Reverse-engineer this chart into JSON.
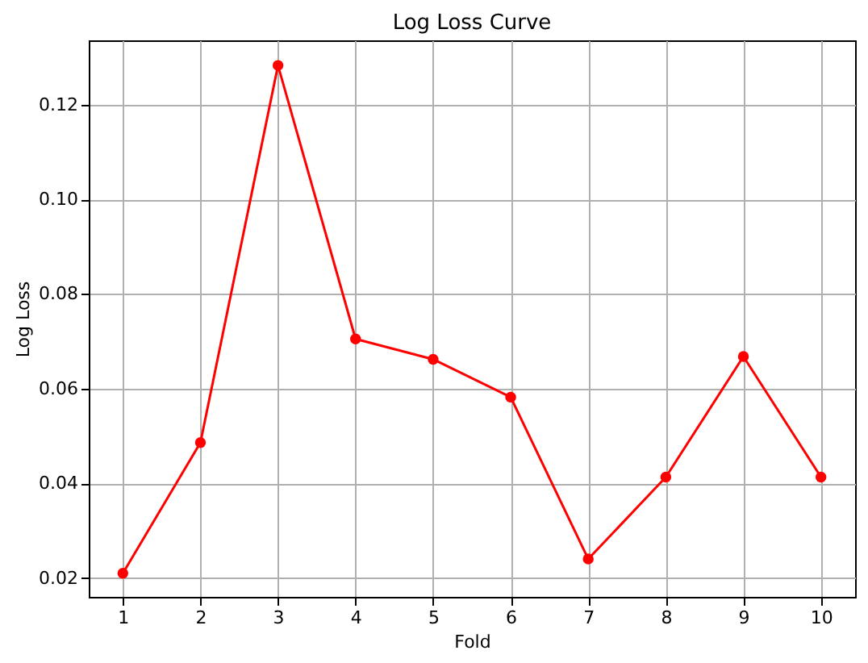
{
  "chart_data": {
    "type": "line",
    "title": "Log Loss Curve",
    "xlabel": "Fold",
    "ylabel": "Log Loss",
    "x": [
      1,
      2,
      3,
      4,
      5,
      6,
      7,
      8,
      9,
      10
    ],
    "series": [
      {
        "color": "#ff0000",
        "values": [
          0.021,
          0.0486,
          0.1283,
          0.0705,
          0.0662,
          0.0582,
          0.024,
          0.0413,
          0.0668,
          0.0413
        ]
      }
    ],
    "xlim": [
      0.56,
      10.44
    ],
    "xticks": [
      1,
      2,
      3,
      4,
      5,
      6,
      7,
      8,
      9,
      10
    ],
    "ylim": [
      0.016,
      0.1336
    ],
    "yticks": [
      {
        "value": 0.02,
        "label": "0.02"
      },
      {
        "value": 0.04,
        "label": "0.04"
      },
      {
        "value": 0.06,
        "label": "0.06"
      },
      {
        "value": 0.08,
        "label": "0.08"
      },
      {
        "value": 0.1,
        "label": "0.10"
      },
      {
        "value": 0.12,
        "label": "0.12"
      }
    ],
    "grid": true,
    "marker": "circle",
    "line_style": "solid"
  }
}
